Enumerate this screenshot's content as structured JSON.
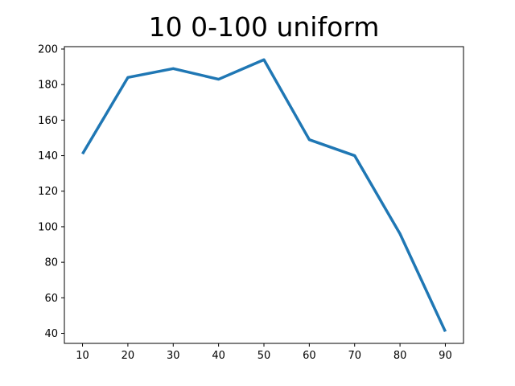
{
  "chart_data": {
    "type": "line",
    "title": "10 0-100 uniform",
    "xlabel": "",
    "ylabel": "",
    "x": [
      10,
      20,
      30,
      40,
      50,
      60,
      70,
      80,
      90
    ],
    "series": [
      {
        "values": [
          141,
          184,
          189,
          183,
          194,
          149,
          140,
          96,
          41
        ],
        "color": "#1f77b4"
      }
    ],
    "xlim": [
      6,
      94
    ],
    "ylim": [
      34.35,
      201.35
    ],
    "xticks": [
      10,
      20,
      30,
      40,
      50,
      60,
      70,
      80,
      90
    ],
    "yticks": [
      40,
      60,
      80,
      100,
      120,
      140,
      160,
      180,
      200
    ],
    "grid": false,
    "legend": "none"
  }
}
